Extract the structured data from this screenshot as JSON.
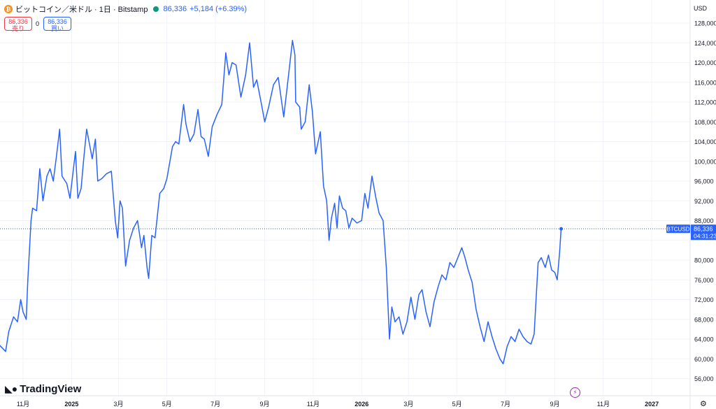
{
  "header": {
    "symbol_title": "ビットコイン／米ドル · 1日 · Bitstamp",
    "icon": "bitcoin-icon",
    "last_price": "86,336",
    "change": "+5,184 (+6.39%)",
    "sell_price": "86,336",
    "sell_label": "売り",
    "spread": "0",
    "buy_price": "86,336",
    "buy_label": "買い"
  },
  "currency": "USD",
  "price_label": {
    "symbol": "BTCUSD",
    "price": "86,336",
    "countdown": "04:31:23"
  },
  "logo": "TradingView",
  "colors": {
    "line": "#2962ff",
    "sell": "#f23645",
    "buy": "#2962ff",
    "live": "#089981",
    "bitcoin": "#f7931a",
    "event": "#9c27b0"
  },
  "chart_data": {
    "type": "line",
    "series": [
      {
        "name": "BTCUSD",
        "points": [
          [
            "2024-10-01",
            63000
          ],
          [
            "2024-10-10",
            61500
          ],
          [
            "2024-10-14",
            65500
          ],
          [
            "2024-10-20",
            68500
          ],
          [
            "2024-10-25",
            67500
          ],
          [
            "2024-10-29",
            72000
          ],
          [
            "2024-11-01",
            69500
          ],
          [
            "2024-11-05",
            68000
          ],
          [
            "2024-11-07",
            76000
          ],
          [
            "2024-11-11",
            88000
          ],
          [
            "2024-11-13",
            90500
          ],
          [
            "2024-11-18",
            90000
          ],
          [
            "2024-11-22",
            98500
          ],
          [
            "2024-11-26",
            92000
          ],
          [
            "2024-12-01",
            97000
          ],
          [
            "2024-12-05",
            98500
          ],
          [
            "2024-12-09",
            96000
          ],
          [
            "2024-12-13",
            101000
          ],
          [
            "2024-12-17",
            106500
          ],
          [
            "2024-12-20",
            97000
          ],
          [
            "2024-12-26",
            95500
          ],
          [
            "2024-12-30",
            92500
          ],
          [
            "2025-01-03",
            98000
          ],
          [
            "2025-01-06",
            102000
          ],
          [
            "2025-01-09",
            92500
          ],
          [
            "2025-01-13",
            94500
          ],
          [
            "2025-01-16",
            100000
          ],
          [
            "2025-01-20",
            106500
          ],
          [
            "2025-01-23",
            104000
          ],
          [
            "2025-01-27",
            100500
          ],
          [
            "2025-01-31",
            104500
          ],
          [
            "2025-02-03",
            96000
          ],
          [
            "2025-02-08",
            96500
          ],
          [
            "2025-02-14",
            97500
          ],
          [
            "2025-02-20",
            98000
          ],
          [
            "2025-02-25",
            88000
          ],
          [
            "2025-02-28",
            84500
          ],
          [
            "2025-03-03",
            92000
          ],
          [
            "2025-03-06",
            90500
          ],
          [
            "2025-03-10",
            78800
          ],
          [
            "2025-03-15",
            84000
          ],
          [
            "2025-03-20",
            86500
          ],
          [
            "2025-03-25",
            88000
          ],
          [
            "2025-03-30",
            82500
          ],
          [
            "2025-04-02",
            85000
          ],
          [
            "2025-04-06",
            78500
          ],
          [
            "2025-04-08",
            76300
          ],
          [
            "2025-04-12",
            85000
          ],
          [
            "2025-04-16",
            84500
          ],
          [
            "2025-04-22",
            93500
          ],
          [
            "2025-04-27",
            94500
          ],
          [
            "2025-05-01",
            96500
          ],
          [
            "2025-05-08",
            103000
          ],
          [
            "2025-05-12",
            104000
          ],
          [
            "2025-05-16",
            103500
          ],
          [
            "2025-05-22",
            111500
          ],
          [
            "2025-05-25",
            107500
          ],
          [
            "2025-05-30",
            104000
          ],
          [
            "2025-06-04",
            105500
          ],
          [
            "2025-06-09",
            110500
          ],
          [
            "2025-06-13",
            105000
          ],
          [
            "2025-06-17",
            104500
          ],
          [
            "2025-06-22",
            101000
          ],
          [
            "2025-06-27",
            107000
          ],
          [
            "2025-07-03",
            109500
          ],
          [
            "2025-07-09",
            111500
          ],
          [
            "2025-07-14",
            122000
          ],
          [
            "2025-07-18",
            117500
          ],
          [
            "2025-07-22",
            120000
          ],
          [
            "2025-07-27",
            119500
          ],
          [
            "2025-08-02",
            113000
          ],
          [
            "2025-08-08",
            117500
          ],
          [
            "2025-08-13",
            124000
          ],
          [
            "2025-08-18",
            115000
          ],
          [
            "2025-08-22",
            116500
          ],
          [
            "2025-08-28",
            111500
          ],
          [
            "2025-09-01",
            108000
          ],
          [
            "2025-09-06",
            111000
          ],
          [
            "2025-09-12",
            115500
          ],
          [
            "2025-09-18",
            117000
          ],
          [
            "2025-09-25",
            109000
          ],
          [
            "2025-10-01",
            117500
          ],
          [
            "2025-10-06",
            124500
          ],
          [
            "2025-10-09",
            121500
          ],
          [
            "2025-10-10",
            112000
          ],
          [
            "2025-10-15",
            111000
          ],
          [
            "2025-10-17",
            106500
          ],
          [
            "2025-10-22",
            108000
          ],
          [
            "2025-10-27",
            115500
          ],
          [
            "2025-10-31",
            110000
          ],
          [
            "2025-11-04",
            101500
          ],
          [
            "2025-11-10",
            106000
          ],
          [
            "2025-11-14",
            95000
          ],
          [
            "2025-11-18",
            92000
          ],
          [
            "2025-11-21",
            84000
          ],
          [
            "2025-11-24",
            88500
          ],
          [
            "2025-11-28",
            91500
          ],
          [
            "2025-12-01",
            86500
          ],
          [
            "2025-12-04",
            93000
          ],
          [
            "2025-12-08",
            90500
          ],
          [
            "2025-12-12",
            90000
          ],
          [
            "2025-12-16",
            86500
          ],
          [
            "2025-12-20",
            88500
          ],
          [
            "2025-12-26",
            87500
          ],
          [
            "2026-01-01",
            88000
          ],
          [
            "2026-01-05",
            93500
          ],
          [
            "2026-01-09",
            90500
          ],
          [
            "2026-01-14",
            97000
          ],
          [
            "2026-01-19",
            92500
          ],
          [
            "2026-01-23",
            89500
          ],
          [
            "2026-01-28",
            88000
          ],
          [
            "2026-02-01",
            78500
          ],
          [
            "2026-02-05",
            64000
          ],
          [
            "2026-02-08",
            70500
          ],
          [
            "2026-02-12",
            67500
          ],
          [
            "2026-02-17",
            68500
          ],
          [
            "2026-02-22",
            65000
          ],
          [
            "2026-02-27",
            67500
          ],
          [
            "2026-03-04",
            72500
          ],
          [
            "2026-03-09",
            68000
          ],
          [
            "2026-03-14",
            73000
          ],
          [
            "2026-03-18",
            74000
          ],
          [
            "2026-03-23",
            69500
          ],
          [
            "2026-03-28",
            66500
          ],
          [
            "2026-04-02",
            71500
          ],
          [
            "2026-04-07",
            74500
          ],
          [
            "2026-04-12",
            77000
          ],
          [
            "2026-04-17",
            76000
          ],
          [
            "2026-04-22",
            79500
          ],
          [
            "2026-04-27",
            78500
          ],
          [
            "2026-05-02",
            80500
          ],
          [
            "2026-05-07",
            82500
          ],
          [
            "2026-05-11",
            80500
          ],
          [
            "2026-05-15",
            78000
          ],
          [
            "2026-05-20",
            75500
          ],
          [
            "2026-05-25",
            70000
          ],
          [
            "2026-05-30",
            66500
          ],
          [
            "2026-06-04",
            63500
          ],
          [
            "2026-06-09",
            67500
          ],
          [
            "2026-06-14",
            64500
          ],
          [
            "2026-06-19",
            62000
          ],
          [
            "2026-06-24",
            60000
          ],
          [
            "2026-06-28",
            59000
          ],
          [
            "2026-07-03",
            62500
          ],
          [
            "2026-07-08",
            64500
          ],
          [
            "2026-07-13",
            63500
          ],
          [
            "2026-07-18",
            66000
          ],
          [
            "2026-07-23",
            64500
          ],
          [
            "2026-07-28",
            63500
          ],
          [
            "2026-08-02",
            63000
          ],
          [
            "2026-08-06",
            65000
          ],
          [
            "2026-08-11",
            79500
          ],
          [
            "2026-08-15",
            80500
          ],
          [
            "2026-08-20",
            78500
          ],
          [
            "2026-08-24",
            81000
          ],
          [
            "2026-08-28",
            78000
          ],
          [
            "2026-09-01",
            77500
          ],
          [
            "2026-09-04",
            76000
          ],
          [
            "2026-09-07",
            81500
          ],
          [
            "2026-09-09",
            86336
          ]
        ]
      }
    ],
    "y_ticks": [
      56000,
      60000,
      64000,
      68000,
      72000,
      76000,
      80000,
      84000,
      88000,
      92000,
      96000,
      100000,
      104000,
      108000,
      112000,
      116000,
      120000,
      124000,
      128000
    ],
    "y_labels_shown": [
      "56,000",
      "60,000",
      "64,000",
      "68,000",
      "72,000",
      "76,000",
      "80,000",
      "88,000",
      "92,000",
      "96,000",
      "100,000",
      "104,000",
      "108,000",
      "112,000",
      "116,000",
      "120,000",
      "124,000",
      "128,000"
    ],
    "x_ticks": [
      {
        "label": "11月",
        "date": "2024-11-01"
      },
      {
        "label": "2025",
        "date": "2025-01-01"
      },
      {
        "label": "3月",
        "date": "2025-03-01"
      },
      {
        "label": "5月",
        "date": "2025-05-01"
      },
      {
        "label": "7月",
        "date": "2025-07-01"
      },
      {
        "label": "9月",
        "date": "2025-09-01"
      },
      {
        "label": "11月",
        "date": "2025-11-01"
      },
      {
        "label": "2026",
        "date": "2026-01-01"
      },
      {
        "label": "3月",
        "date": "2026-03-01"
      },
      {
        "label": "5月",
        "date": "2026-05-01"
      },
      {
        "label": "7月",
        "date": "2026-07-01"
      },
      {
        "label": "9月",
        "date": "2026-09-01"
      },
      {
        "label": "11月",
        "date": "2026-11-01"
      },
      {
        "label": "2027",
        "date": "2027-01-01"
      }
    ],
    "last_price": 86336,
    "grid": true
  }
}
